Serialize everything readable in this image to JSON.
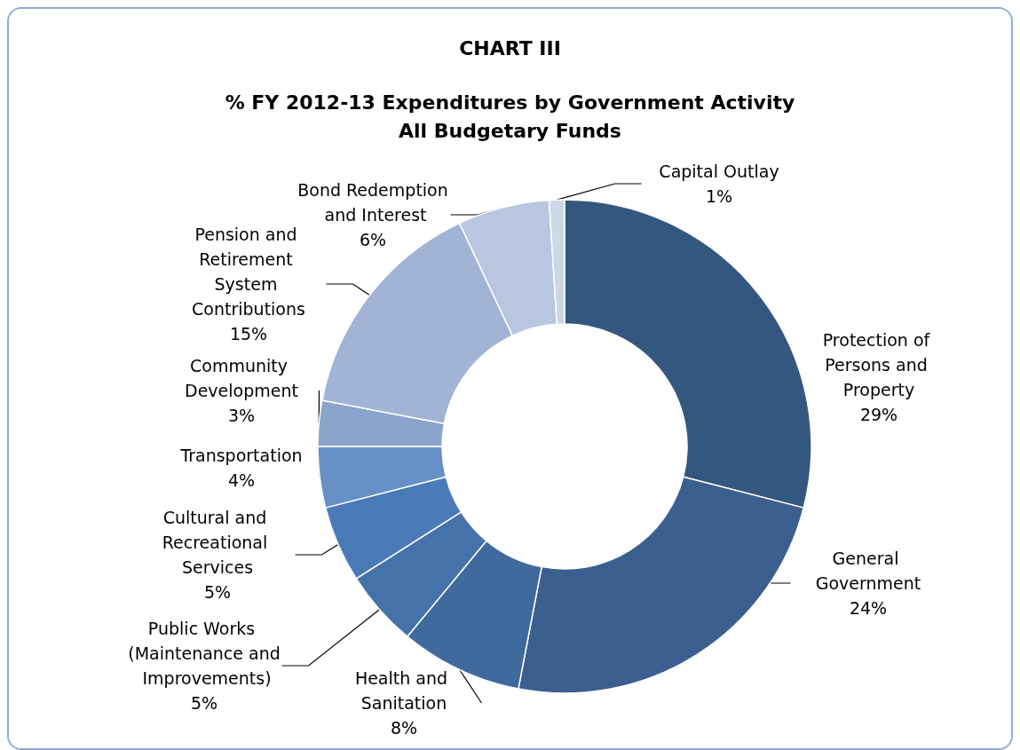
{
  "chart_data": {
    "type": "donut",
    "title": "CHART III",
    "subtitle": "% FY 2012-13 Expenditures by Government Activity\nAll Budgetary Funds",
    "categories": [
      "Protection of Persons and Property",
      "General Government",
      "Health and Sanitation",
      "Public Works (Maintenance and Improvements)",
      "Cultural and Recreational Services",
      "Transportation",
      "Community Development",
      "Pension and Retirement System Contributions",
      "Bond Redemption and Interest",
      "Capital Outlay"
    ],
    "values": [
      29,
      24,
      8,
      5,
      5,
      4,
      3,
      15,
      6,
      1
    ],
    "colors": [
      "#34577f",
      "#3b5f8f",
      "#40699e",
      "#4672aa",
      "#4a7bb8",
      "#6690c6",
      "#8aa4cc",
      "#a1b4d5",
      "#b8c6e0",
      "#cdd7ea"
    ],
    "value_labels": [
      "29%",
      "24%",
      "8%",
      "5%",
      "5%",
      "4%",
      "3%",
      "15%",
      "6%",
      "1%"
    ],
    "legend": false
  }
}
